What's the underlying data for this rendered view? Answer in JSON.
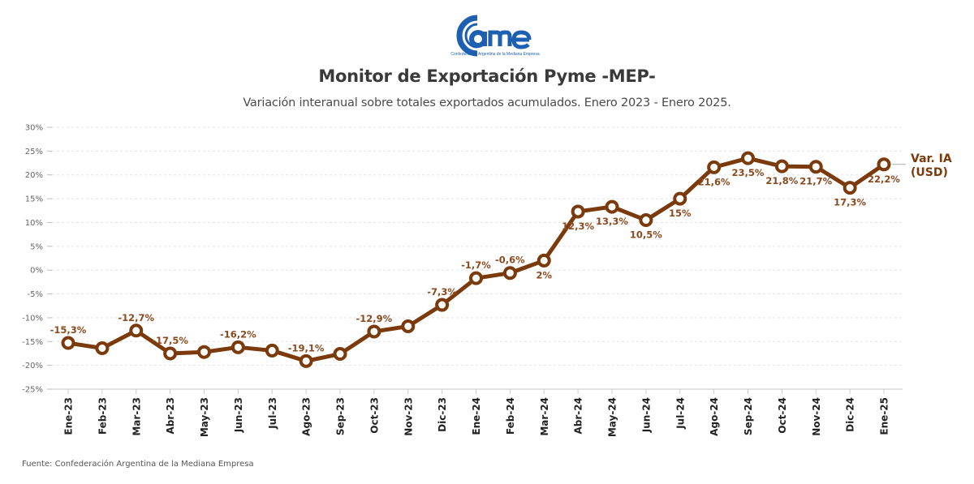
{
  "logo": {
    "name": "cme",
    "tagline": "Confederación Argentina de la Mediana Empresa",
    "color": "#1d5fb0"
  },
  "header": {
    "title": "Monitor de Exportación Pyme -MEP-",
    "subtitle": "Variación interanual sobre totales exportados acumulados. Enero 2023 - Enero 2025."
  },
  "footer": {
    "source": "Fuente: Confederación Argentina de la Mediana Empresa"
  },
  "chart_data": {
    "type": "line",
    "title": "Monitor de Exportación Pyme -MEP-",
    "subtitle": "Variación interanual sobre totales exportados acumulados. Enero 2023 - Enero 2025.",
    "xlabel": "",
    "ylabel": "",
    "ylim": [
      -25,
      30
    ],
    "yticks": [
      30,
      25,
      20,
      15,
      10,
      5,
      0,
      -5,
      -10,
      -15,
      -20,
      -25
    ],
    "ytick_labels": [
      "30%",
      "25%",
      "20%",
      "15%",
      "10%",
      "5%",
      "0%",
      "-5%",
      "-10%",
      "-15%",
      "-20%",
      "-25%"
    ],
    "grid": true,
    "categories": [
      "Ene-23",
      "Feb-23",
      "Mar-23",
      "Abr-23",
      "May-23",
      "Jun-23",
      "Jul-23",
      "Ago-23",
      "Sep-23",
      "Oct-23",
      "Nov-23",
      "Dic-23",
      "Ene-24",
      "Feb-24",
      "Mar-24",
      "Abr-24",
      "May-24",
      "Jun-24",
      "Jul-24",
      "Ago-24",
      "Sep-24",
      "Oct-24",
      "Nov-24",
      "Dic-24",
      "Ene-25"
    ],
    "series": [
      {
        "name": "Var. IA (USD)",
        "legend_lines": [
          "Var. IA",
          "(USD)"
        ],
        "color": "#7a3a0b",
        "values": [
          -15.3,
          -16.4,
          -12.7,
          -17.5,
          -17.2,
          -16.2,
          -16.9,
          -19.1,
          -17.6,
          -12.9,
          -11.8,
          -7.3,
          -1.7,
          -0.6,
          2,
          12.3,
          13.3,
          10.5,
          15,
          21.6,
          23.5,
          21.8,
          21.7,
          17.3,
          22.2
        ],
        "data_labels": [
          "-15,3%",
          null,
          "-12,7%",
          "-17,5%",
          null,
          "-16,2%",
          null,
          "-19,1%",
          null,
          "-12,9%",
          null,
          "-7,3%",
          "-1,7%",
          "-0,6%",
          "2%",
          "12,3%",
          "13,3%",
          "10,5%",
          "15%",
          "21,6%",
          "23,5%",
          "21,8%",
          "21,7%",
          "17,3%",
          "22,2%"
        ],
        "label_positions": [
          "above",
          "none",
          "above",
          "above",
          "none",
          "above",
          "none",
          "above",
          "none",
          "above",
          "none",
          "above",
          "above",
          "above",
          "below",
          "below",
          "below",
          "below",
          "below",
          "below",
          "below",
          "below",
          "below",
          "below",
          "below"
        ]
      }
    ],
    "legend": "right"
  }
}
